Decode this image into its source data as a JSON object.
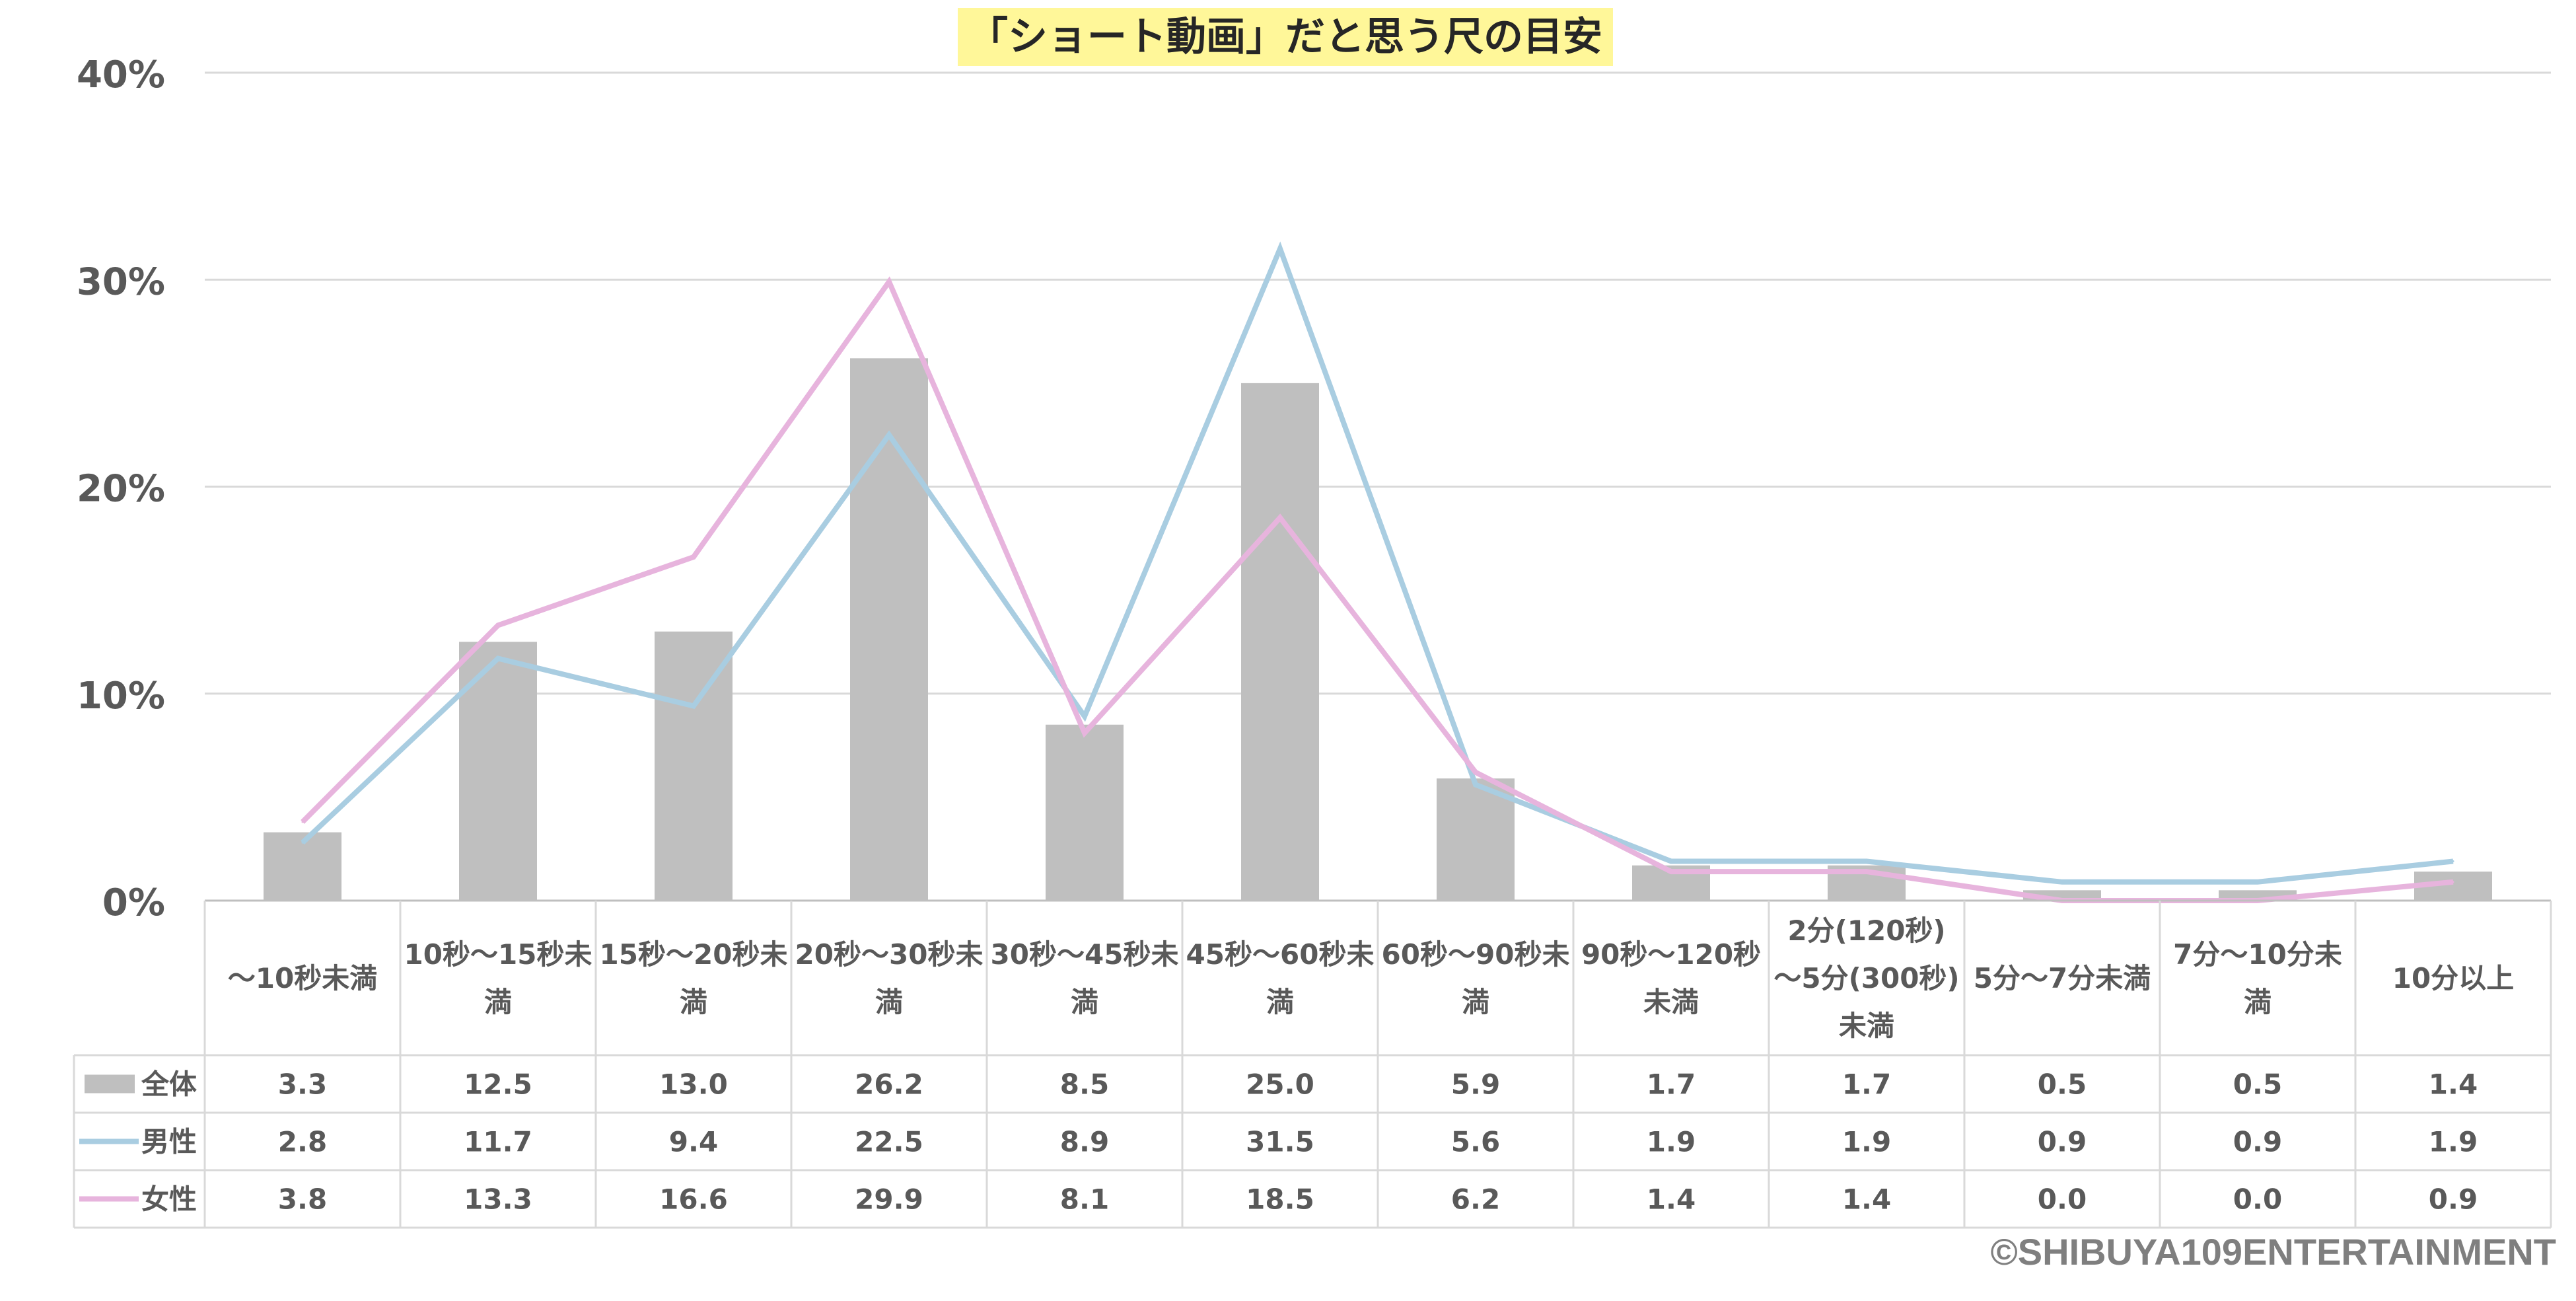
{
  "chart_data": {
    "type": "bar",
    "title": "「ショート動画」だと思う尺の目安",
    "y_axis": {
      "min": 0,
      "max": 40,
      "step": 10,
      "unit": "%",
      "tick_labels": [
        "0%",
        "10%",
        "20%",
        "30%",
        "40%"
      ]
    },
    "grid": true,
    "legend": "data-table",
    "categories": [
      "〜10秒未満",
      "10秒〜15秒未満",
      "15秒〜20秒未満",
      "20秒〜30秒未満",
      "30秒〜45秒未満",
      "45秒〜60秒未満",
      "60秒〜90秒未満",
      "90秒〜120秒未満",
      "2分(120秒)〜5分(300秒)未満",
      "5分〜7分未満",
      "7分〜10分未満",
      "10分以上"
    ],
    "category_lines": [
      [
        "〜10秒未満"
      ],
      [
        "10秒〜15秒未",
        "満"
      ],
      [
        "15秒〜20秒未",
        "満"
      ],
      [
        "20秒〜30秒未",
        "満"
      ],
      [
        "30秒〜45秒未",
        "満"
      ],
      [
        "45秒〜60秒未",
        "満"
      ],
      [
        "60秒〜90秒未",
        "満"
      ],
      [
        "90秒〜120秒",
        "未満"
      ],
      [
        "2分(120秒)",
        "〜5分(300秒)",
        "未満"
      ],
      [
        "5分〜7分未満"
      ],
      [
        "7分〜10分未",
        "満"
      ],
      [
        "10分以上"
      ]
    ],
    "series": [
      {
        "name": "全体",
        "kind": "bar",
        "color": "#bfbfbf",
        "values": [
          3.3,
          12.5,
          13.0,
          26.2,
          8.5,
          25.0,
          5.9,
          1.7,
          1.7,
          0.5,
          0.5,
          1.4
        ],
        "labels": [
          "3.3",
          "12.5",
          "13.0",
          "26.2",
          "8.5",
          "25.0",
          "5.9",
          "1.7",
          "1.7",
          "0.5",
          "0.5",
          "1.4"
        ]
      },
      {
        "name": "男性",
        "kind": "line",
        "color": "#a9cde1",
        "values": [
          2.8,
          11.7,
          9.4,
          22.5,
          8.9,
          31.5,
          5.6,
          1.9,
          1.9,
          0.9,
          0.9,
          1.9
        ],
        "labels": [
          "2.8",
          "11.7",
          "9.4",
          "22.5",
          "8.9",
          "31.5",
          "5.6",
          "1.9",
          "1.9",
          "0.9",
          "0.9",
          "1.9"
        ]
      },
      {
        "name": "女性",
        "kind": "line",
        "color": "#e7b4dd",
        "values": [
          3.8,
          13.3,
          16.6,
          29.9,
          8.1,
          18.5,
          6.2,
          1.4,
          1.4,
          0.0,
          0.0,
          0.9
        ],
        "labels": [
          "3.8",
          "13.3",
          "16.6",
          "29.9",
          "8.1",
          "18.5",
          "6.2",
          "1.4",
          "1.4",
          "0.0",
          "0.0",
          "0.9"
        ]
      }
    ]
  },
  "footer": {
    "copyright": "©SHIBUYA109ENTERTAINMENT"
  }
}
